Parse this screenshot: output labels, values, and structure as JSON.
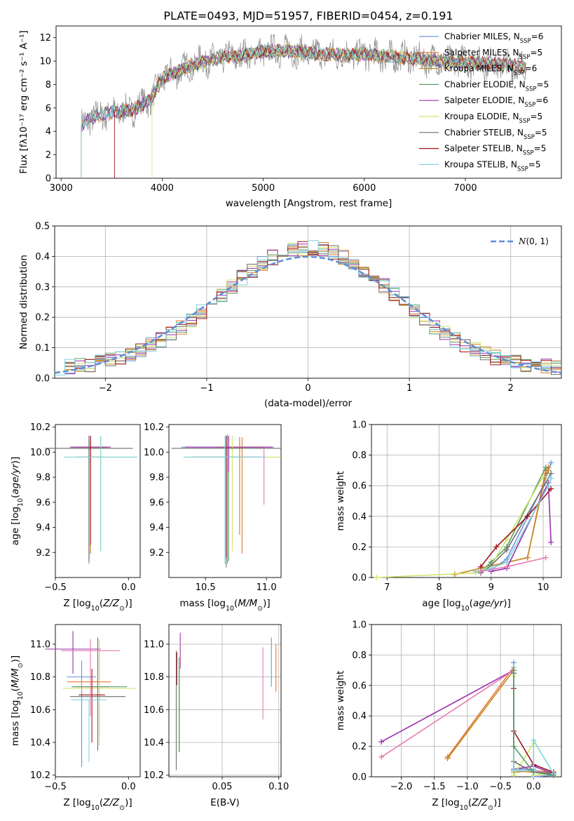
{
  "colors": {
    "series": [
      "#6f96da",
      "#e8762b",
      "#c48a2a",
      "#5a9a66",
      "#9b2fae",
      "#cfe66a",
      "#6e6e6e",
      "#a0141c",
      "#7fd3dc"
    ],
    "extra": {
      "pink": "#e87bb0",
      "gray_raw": "#8c8c8c",
      "norm_line": "#5c8dd6"
    }
  },
  "figure": {
    "title": "PLATE=0493, MJD=51957, FIBERID=0454, z=0.191"
  },
  "chart_data": [
    {
      "id": "spectrum",
      "type": "line",
      "title": "PLATE=0493, MJD=51957, FIBERID=0454, z=0.191",
      "xlabel": "wavelength [Angstrom, rest frame]",
      "ylabel": "Flux [fλ10⁻¹⁷ erg cm⁻² s⁻¹ A⁻¹]",
      "xlim": [
        2950,
        7950
      ],
      "ylim": [
        0,
        13
      ],
      "xticks": [
        3000,
        4000,
        5000,
        6000,
        7000
      ],
      "yticks": [
        0,
        2,
        4,
        6,
        8,
        10,
        12
      ],
      "grid": false,
      "legend_position": "right",
      "legend": [
        {
          "name": "Chabrier MILES, N",
          "sub": "SSP",
          "tail": "=6"
        },
        {
          "name": "Salpeter MILES, N",
          "sub": "SSP",
          "tail": "=5"
        },
        {
          "name": "Kroupa MILES, N",
          "sub": "SSP",
          "tail": "=6"
        },
        {
          "name": "Chabrier ELODIE, N",
          "sub": "SSP",
          "tail": "=5"
        },
        {
          "name": "Salpeter ELODIE, N",
          "sub": "SSP",
          "tail": "=6"
        },
        {
          "name": "Kroupa ELODIE, N",
          "sub": "SSP",
          "tail": "=5"
        },
        {
          "name": "Chabrier STELIB, N",
          "sub": "SSP",
          "tail": "=5"
        },
        {
          "name": "Salpeter STELIB, N",
          "sub": "SSP",
          "tail": "=5"
        },
        {
          "name": "Kroupa STELIB, N",
          "sub": "SSP",
          "tail": "=5"
        }
      ],
      "model_continuum": {
        "x": [
          3200,
          3300,
          3500,
          3700,
          3900,
          4000,
          4200,
          4400,
          4600,
          4800,
          5000,
          5200,
          5400,
          5600,
          5800,
          6000,
          6200,
          6400,
          6600,
          6800,
          7000,
          7200,
          7400,
          7600
        ],
        "y": [
          4.5,
          5.2,
          5.6,
          5.8,
          6.8,
          8.5,
          9.3,
          10.0,
          10.3,
          10.5,
          10.8,
          10.9,
          10.7,
          10.6,
          10.5,
          10.6,
          10.4,
          10.3,
          10.1,
          10.0,
          9.9,
          9.8,
          9.7,
          9.5
        ]
      },
      "model_start_wavelengths": [
        3200,
        3200,
        3530,
        3200,
        3200,
        3900,
        3200,
        3530,
        3200
      ]
    },
    {
      "id": "residuals",
      "type": "histogram",
      "xlabel": "(data-model)/error",
      "ylabel": "Normed distribution",
      "xlim": [
        -2.5,
        2.5
      ],
      "ylim": [
        0,
        0.5
      ],
      "xticks": [
        -2,
        -1,
        0,
        1,
        2
      ],
      "yticks": [
        0.0,
        0.1,
        0.2,
        0.3,
        0.4,
        0.5
      ],
      "grid": true,
      "legend": "N(0,1)",
      "bin_edges_start": -2.5,
      "bin_width": 0.1,
      "bins": 50,
      "normal_mean": 0,
      "normal_sd": 1
    },
    {
      "id": "age-vs-Z",
      "type": "scatter",
      "xlabel": "Z [log10(Z/Z⊙)]",
      "ylabel": "age  [log10(age/yr)]",
      "xlim": [
        -0.5,
        0.08
      ],
      "ylim": [
        9.0,
        10.22
      ],
      "xticks": [
        -0.5,
        0.0
      ],
      "yticks": [
        9.2,
        9.4,
        9.6,
        9.8,
        10.0,
        10.2
      ],
      "points": [
        {
          "x": -0.27,
          "y": 10.03,
          "xerr": 0.13,
          "yerr": [
            0.92,
            0.1
          ],
          "series": 0
        },
        {
          "x": -0.26,
          "y": 10.04,
          "xerr": 0.12,
          "yerr": [
            0.85,
            0.08
          ],
          "series": 1
        },
        {
          "x": -0.26,
          "y": 10.04,
          "xerr": 0.12,
          "yerr": [
            0.85,
            0.08
          ],
          "series": 2
        },
        {
          "x": -0.27,
          "y": 10.03,
          "xerr": 0.13,
          "yerr": [
            0.9,
            0.1
          ],
          "series": 3
        },
        {
          "x": -0.26,
          "y": 10.04,
          "xerr": 0.14,
          "yerr": [
            0.12,
            0.09
          ],
          "series": 4
        },
        {
          "x": -0.19,
          "y": 9.96,
          "xerr": 0.25,
          "yerr": [
            0.75,
            0.17
          ],
          "series": 5
        },
        {
          "x": -0.27,
          "y": 10.03,
          "xerr": 0.3,
          "yerr": [
            0.9,
            0.1
          ],
          "series": 6
        },
        {
          "x": -0.26,
          "y": 9.96,
          "xerr": 0.09,
          "yerr": [
            0.7,
            0.17
          ],
          "series": 7
        },
        {
          "x": -0.19,
          "y": 9.96,
          "xerr": 0.25,
          "yerr": [
            0.75,
            0.17
          ],
          "series": 8
        }
      ]
    },
    {
      "id": "age-vs-mass",
      "type": "scatter",
      "xlabel": "mass [log10(M/M⊙)]",
      "ylabel": "",
      "xlim": [
        10.2,
        11.12
      ],
      "ylim": [
        9.0,
        10.22
      ],
      "xticks": [
        10.5,
        11.0
      ],
      "yticks": [
        9.2,
        9.4,
        9.6,
        9.8,
        10.0,
        10.2
      ],
      "points": [
        {
          "x": 10.68,
          "y": 10.04,
          "xerr": 0.38,
          "yerr": [
            0.93,
            0.1
          ],
          "series": 0
        },
        {
          "x": 10.8,
          "y": 10.04,
          "xerr": 0.2,
          "yerr": [
            0.85,
            0.08
          ],
          "series": 1
        },
        {
          "x": 10.78,
          "y": 10.04,
          "xerr": 0.21,
          "yerr": [
            0.7,
            0.08
          ],
          "series": 2
        },
        {
          "x": 10.69,
          "y": 10.03,
          "xerr": 0.3,
          "yerr": [
            0.9,
            0.1
          ],
          "series": 3
        },
        {
          "x": 10.69,
          "y": 10.04,
          "xerr": 0.36,
          "yerr": [
            0.2,
            0.09
          ],
          "series": 4
        },
        {
          "x": 10.72,
          "y": 9.96,
          "xerr": 0.4,
          "yerr": [
            0.75,
            0.17
          ],
          "series": 5
        },
        {
          "x": 10.67,
          "y": 10.03,
          "xerr": 0.45,
          "yerr": [
            0.95,
            0.1
          ],
          "series": 6
        },
        {
          "x": 10.67,
          "y": 9.96,
          "xerr": 0.28,
          "yerr": [
            0.8,
            0.17
          ],
          "series": 7
        },
        {
          "x": 10.66,
          "y": 9.96,
          "xerr": 0.34,
          "yerr": [
            0.85,
            0.17
          ],
          "series": 8
        },
        {
          "x": 10.98,
          "y": 10.03,
          "xerr": 0.0,
          "yerr": [
            0.45,
            0.02
          ],
          "series": 9
        }
      ]
    },
    {
      "id": "massweight-vs-age",
      "type": "line",
      "xlabel": "age  [log10(age/yr)]",
      "ylabel": "mass weight",
      "xlim": [
        6.7,
        10.35
      ],
      "ylim": [
        0.0,
        1.0
      ],
      "xticks": [
        7,
        8,
        9,
        10
      ],
      "yticks": [
        0.0,
        0.2,
        0.4,
        0.6,
        0.8,
        1.0
      ],
      "grid": true,
      "series": [
        {
          "x": [
            8.7,
            9.0,
            9.3,
            10.0,
            10.15
          ],
          "y": [
            0.04,
            0.05,
            0.12,
            0.6,
            0.75
          ],
          "series": 0
        },
        {
          "x": [
            8.3,
            8.8,
            9.7,
            10.05,
            10.1
          ],
          "y": [
            0.02,
            0.06,
            0.13,
            0.7,
            0.72
          ],
          "series": 1
        },
        {
          "x": [
            8.3,
            8.8,
            9.7,
            10.05,
            10.1
          ],
          "y": [
            0.02,
            0.06,
            0.13,
            0.68,
            0.7
          ],
          "series": 2
        },
        {
          "x": [
            8.8,
            9.0,
            9.3,
            10.05
          ],
          "y": [
            0.04,
            0.1,
            0.2,
            0.72
          ],
          "series": 3
        },
        {
          "x": [
            9.0,
            9.3,
            10.1,
            10.15
          ],
          "y": [
            0.04,
            0.06,
            0.62,
            0.23
          ],
          "series": 4
        },
        {
          "x": [
            6.8,
            8.7,
            9.0,
            9.3,
            10.0
          ],
          "y": [
            0.0,
            0.03,
            0.08,
            0.25,
            0.66
          ],
          "series": 5
        },
        {
          "x": [
            8.8,
            9.0,
            9.3,
            10.15
          ],
          "y": [
            0.03,
            0.08,
            0.18,
            0.68
          ],
          "series": 6
        },
        {
          "x": [
            8.8,
            9.1,
            9.7,
            10.15
          ],
          "y": [
            0.07,
            0.2,
            0.4,
            0.58
          ],
          "series": 7
        },
        {
          "x": [
            8.7,
            9.0,
            9.3,
            10.1,
            10.15
          ],
          "y": [
            0.04,
            0.06,
            0.1,
            0.6,
            0.65
          ],
          "series": 8
        },
        {
          "x": [
            8.8,
            9.3,
            10.05
          ],
          "y": [
            0.04,
            0.07,
            0.13
          ],
          "series": 9
        }
      ]
    },
    {
      "id": "mass-vs-Z",
      "type": "scatter",
      "xlabel": "Z [log10(Z/Z⊙)]",
      "ylabel": "mass [log10(M/M⊙)]",
      "xlim": [
        -0.5,
        0.08
      ],
      "ylim": [
        10.19,
        11.12
      ],
      "xticks": [
        -0.5,
        0.0
      ],
      "yticks": [
        10.2,
        10.4,
        10.6,
        10.8,
        11.0
      ],
      "points": [
        {
          "x": -0.32,
          "y": 10.8,
          "xerr": 0.1,
          "yerr": [
            0.55,
            0.1
          ],
          "series": 0
        },
        {
          "x": -0.27,
          "y": 10.77,
          "xerr": 0.15,
          "yerr": [
            0.0,
            0.0
          ],
          "series": 1
        },
        {
          "x": -0.25,
          "y": 10.74,
          "xerr": 0.12,
          "yerr": [
            0.0,
            0.0
          ],
          "series": 2
        },
        {
          "x": -0.2,
          "y": 10.74,
          "xerr": 0.19,
          "yerr": [
            0.3,
            0.27
          ],
          "series": 3
        },
        {
          "x": -0.38,
          "y": 10.97,
          "xerr": 0.19,
          "yerr": [
            0.15,
            0.11
          ],
          "series": 4
        },
        {
          "x": -0.2,
          "y": 10.73,
          "xerr": 0.25,
          "yerr": [
            0.35,
            0.3
          ],
          "series": 5
        },
        {
          "x": -0.21,
          "y": 10.68,
          "xerr": 0.19,
          "yerr": [
            0.33,
            0.36
          ],
          "series": 6
        },
        {
          "x": -0.25,
          "y": 10.69,
          "xerr": 0.09,
          "yerr": [
            0.29,
            0.16
          ],
          "series": 7
        },
        {
          "x": -0.27,
          "y": 10.66,
          "xerr": 0.12,
          "yerr": [
            0.38,
            0.0
          ],
          "series": 8
        },
        {
          "x": -0.26,
          "y": 10.96,
          "xerr": 0.2,
          "yerr": [
            0.4,
            0.07
          ],
          "series": 9
        }
      ]
    },
    {
      "id": "mass-vs-EBV",
      "type": "scatter",
      "xlabel": "E(B-V)",
      "ylabel": "",
      "xlim": [
        0.003,
        0.102
      ],
      "ylim": [
        10.19,
        11.12
      ],
      "xticks": [
        0.05,
        0.1
      ],
      "yticks": [
        10.2,
        10.4,
        10.6,
        10.8,
        11.0
      ],
      "grid": true,
      "points": [
        {
          "x": 0.0095,
          "y": 10.63,
          "yerr": [
            0.4,
            0.33
          ],
          "series": 6
        },
        {
          "x": 0.01,
          "y": 10.85,
          "yerr": [
            0.1,
            0.1
          ],
          "series": 7
        },
        {
          "x": 0.013,
          "y": 10.95,
          "yerr": [
            0.1,
            0.12
          ],
          "series": 4
        },
        {
          "x": 0.0125,
          "y": 10.67,
          "yerr": [
            0.33,
            0.35
          ],
          "series": 5
        },
        {
          "x": 0.012,
          "y": 10.62,
          "yerr": [
            0.28,
            0.3
          ],
          "series": 3
        },
        {
          "x": 0.086,
          "y": 10.77,
          "yerr": [
            0.23,
            0.21
          ],
          "series": 9
        },
        {
          "x": 0.0935,
          "y": 10.89,
          "yerr": [
            0.15,
            0.15
          ],
          "series": 0
        },
        {
          "x": 0.0975,
          "y": 10.86,
          "yerr": [
            0.15,
            0.14
          ],
          "series": 1
        }
      ]
    },
    {
      "id": "massweight-vs-Z",
      "type": "line",
      "xlabel": "Z [log10(Z/Z⊙)]",
      "ylabel": "mass weight",
      "xlim": [
        -2.45,
        0.42
      ],
      "ylim": [
        0.0,
        1.0
      ],
      "xticks": [
        -2.0,
        -1.5,
        -1.0,
        -0.5,
        0.0
      ],
      "yticks": [
        0.0,
        0.2,
        0.4,
        0.6,
        0.8,
        1.0
      ],
      "grid": true,
      "series": [
        {
          "x": [
            -1.3,
            -0.3,
            -0.3,
            0.0,
            0.3
          ],
          "y": [
            0.13,
            0.72,
            0.04,
            0.03,
            0.02
          ],
          "series": 1
        },
        {
          "x": [
            -1.3,
            -0.3,
            -0.3,
            0.0,
            0.3
          ],
          "y": [
            0.12,
            0.7,
            0.03,
            0.04,
            0.03
          ],
          "series": 2
        },
        {
          "x": [
            -2.3,
            -0.3,
            -0.3,
            0.0,
            0.3
          ],
          "y": [
            0.23,
            0.7,
            0.05,
            0.07,
            0.02
          ],
          "series": 4
        },
        {
          "x": [
            -2.3,
            -0.3,
            -0.3,
            0.0,
            0.3
          ],
          "y": [
            0.13,
            0.7,
            0.04,
            0.04,
            0.02
          ],
          "series": 9
        },
        {
          "x": [
            -0.3,
            -0.3,
            0.0,
            0.0,
            0.3
          ],
          "y": [
            0.75,
            0.05,
            0.05,
            0.0,
            0.01
          ],
          "series": 0
        },
        {
          "x": [
            -0.3,
            -0.3,
            0.0,
            0.0,
            0.3
          ],
          "y": [
            0.66,
            0.01,
            0.22,
            0.01,
            0.02
          ],
          "series": 5
        },
        {
          "x": [
            -0.3,
            -0.3,
            0.0,
            0.3
          ],
          "y": [
            0.58,
            0.3,
            0.08,
            0.03
          ],
          "series": 7
        },
        {
          "x": [
            -0.3,
            -0.3,
            0.0,
            0.3
          ],
          "y": [
            0.68,
            0.1,
            0.03,
            0.02
          ],
          "series": 6
        },
        {
          "x": [
            -0.3,
            -0.3,
            0.0,
            0.0,
            0.3
          ],
          "y": [
            0.72,
            0.04,
            0.04,
            0.24,
            0.02
          ],
          "series": 8
        },
        {
          "x": [
            -0.3,
            -0.3,
            0.0,
            0.3
          ],
          "y": [
            0.7,
            0.2,
            0.03,
            0.01
          ],
          "series": 3
        }
      ]
    }
  ]
}
